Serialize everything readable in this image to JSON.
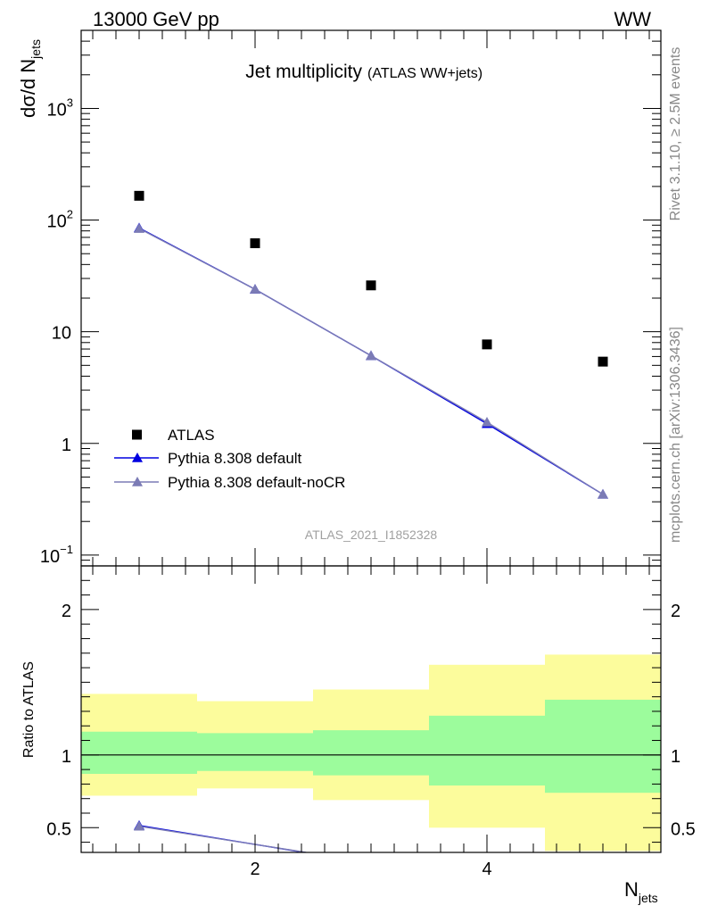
{
  "header": {
    "left_label": "13000 GeV pp",
    "right_label": "WW"
  },
  "side_labels": {
    "rivet": "Rivet 3.1.10, ≥ 2.5M events",
    "source": "mcplots.cern.ch [arXiv:1306.3436]"
  },
  "chart_data": [
    {
      "type": "scatter",
      "title": "Jet multiplicity",
      "subtitle": "(ATLAS WW+jets)",
      "watermark": "ATLAS_2021_I1852328",
      "ylabel": "dσ/d N",
      "ylabel_sub": "jets",
      "yscale": "log",
      "ylim": [
        0.08,
        5000
      ],
      "xlim": [
        0.5,
        5.5
      ],
      "y_ticks": [
        {
          "value": 0.1,
          "base": "10",
          "exp": "−1"
        },
        {
          "value": 1,
          "base": "1",
          "exp": ""
        },
        {
          "value": 10,
          "base": "10",
          "exp": ""
        },
        {
          "value": 100,
          "base": "10",
          "exp": "2"
        },
        {
          "value": 1000,
          "base": "10",
          "exp": "3"
        }
      ],
      "x": [
        1,
        2,
        3,
        4,
        5
      ],
      "series": [
        {
          "name": "ATLAS",
          "marker": "square",
          "color": "#000000",
          "values": [
            165,
            62,
            26,
            7.7,
            5.4
          ]
        },
        {
          "name": "Pythia 8.308 default",
          "marker": "triangle",
          "color": "#0000e0",
          "values": [
            85,
            24,
            6.1,
            1.5,
            0.35
          ]
        },
        {
          "name": "Pythia 8.308 default-noCR",
          "marker": "triangle",
          "color": "#7b7bb5",
          "values": [
            84,
            24,
            6.1,
            1.55,
            0.35
          ]
        }
      ],
      "legend_position": "lower-left"
    },
    {
      "type": "line",
      "ylabel": "Ratio to ATLAS",
      "xlabel": "N",
      "xlabel_sub": "jets",
      "xlim": [
        0.5,
        5.5
      ],
      "ylim": [
        0.33,
        2.3
      ],
      "y_ticks": [
        "0.5",
        "1",
        "2"
      ],
      "x_ticks": [
        "2",
        "4"
      ],
      "bins": [
        {
          "lo": 0.5,
          "hi": 1.5,
          "green": [
            0.87,
            1.16
          ],
          "yellow": [
            0.72,
            1.42
          ]
        },
        {
          "lo": 1.5,
          "hi": 2.5,
          "green": [
            0.89,
            1.15
          ],
          "yellow": [
            0.77,
            1.37
          ]
        },
        {
          "lo": 2.5,
          "hi": 3.5,
          "green": [
            0.86,
            1.17
          ],
          "yellow": [
            0.69,
            1.45
          ]
        },
        {
          "lo": 3.5,
          "hi": 4.5,
          "green": [
            0.79,
            1.27
          ],
          "yellow": [
            0.5,
            1.62
          ]
        },
        {
          "lo": 4.5,
          "hi": 5.5,
          "green": [
            0.74,
            1.38
          ],
          "yellow": [
            0.34,
            1.69
          ]
        }
      ],
      "series": [
        {
          "name": "Pythia 8.308 default",
          "color": "#0000e0",
          "x": [
            1,
            2
          ],
          "values": [
            0.515,
            0.385
          ]
        },
        {
          "name": "Pythia 8.308 default-noCR",
          "color": "#7b7bb5",
          "x": [
            1,
            2
          ],
          "values": [
            0.51,
            0.385
          ]
        }
      ],
      "colors": {
        "green": "#9cfc9c",
        "yellow": "#fcfc9c"
      }
    }
  ]
}
